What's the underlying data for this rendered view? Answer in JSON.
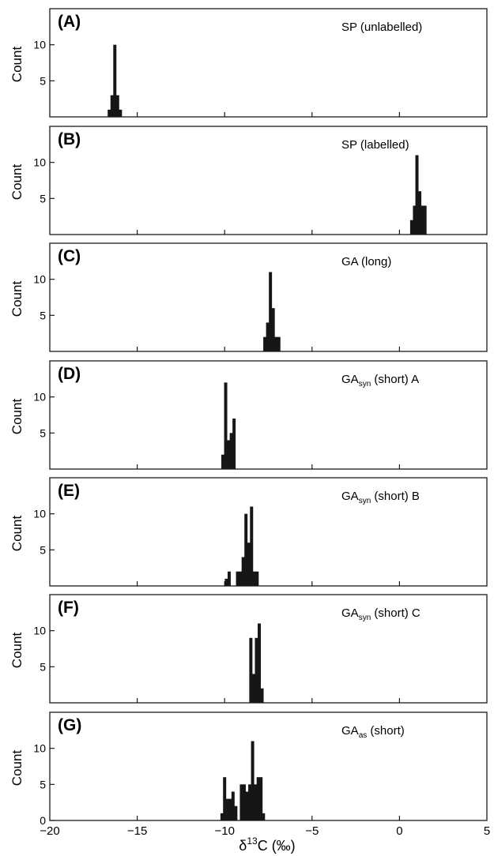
{
  "chart_data": {
    "type": "bar",
    "xlabel_main": "δ",
    "xlabel_sup": "13",
    "xlabel_rest": "C (‰)",
    "xlim": [
      -20,
      5
    ],
    "xticks": [
      "−20",
      "−15",
      "−10",
      "−5",
      "0",
      "5"
    ],
    "xtick_values": [
      -20,
      -15,
      -10,
      -5,
      0,
      5
    ],
    "bin_width": 0.18,
    "panels": [
      {
        "letter": "(A)",
        "title_main": "SP (unlabelled)",
        "title_sub": "",
        "title_rest": "",
        "ylabel": "Count",
        "ylim": [
          0,
          15
        ],
        "yticks": [
          5,
          10
        ],
        "ytick_labels": [
          "5",
          "10"
        ],
        "bins": [
          [
            -16.6,
            1
          ],
          [
            -16.44,
            3
          ],
          [
            -16.28,
            10
          ],
          [
            -16.12,
            3
          ],
          [
            -15.96,
            1
          ]
        ]
      },
      {
        "letter": "(B)",
        "title_main": "SP (labelled)",
        "title_sub": "",
        "title_rest": "",
        "ylabel": "Count",
        "ylim": [
          0,
          15
        ],
        "yticks": [
          5,
          10
        ],
        "ytick_labels": [
          "5",
          "10"
        ],
        "bins": [
          [
            0.7,
            2
          ],
          [
            0.86,
            4
          ],
          [
            1.0,
            11
          ],
          [
            1.16,
            6
          ],
          [
            1.3,
            4
          ],
          [
            1.46,
            4
          ]
        ]
      },
      {
        "letter": "(C)",
        "title_main": "GA (long)",
        "title_sub": "",
        "title_rest": "",
        "ylabel": "Count",
        "ylim": [
          0,
          15
        ],
        "yticks": [
          5,
          10
        ],
        "ytick_labels": [
          "5",
          "10"
        ],
        "bins": [
          [
            -7.7,
            2
          ],
          [
            -7.54,
            4
          ],
          [
            -7.38,
            11
          ],
          [
            -7.22,
            6
          ],
          [
            -7.06,
            2
          ],
          [
            -6.9,
            2
          ]
        ]
      },
      {
        "letter": "(D)",
        "title_main": "GA",
        "title_sub": "syn",
        "title_rest": " (short) A",
        "ylabel": "Count",
        "ylim": [
          0,
          15
        ],
        "yticks": [
          5,
          10
        ],
        "ytick_labels": [
          "5",
          "10"
        ],
        "bins": [
          [
            -10.1,
            2
          ],
          [
            -9.94,
            12
          ],
          [
            -9.78,
            4
          ],
          [
            -9.62,
            5
          ],
          [
            -9.46,
            7
          ]
        ]
      },
      {
        "letter": "(E)",
        "title_main": "GA",
        "title_sub": "syn",
        "title_rest": " (short) B",
        "ylabel": "Count",
        "ylim": [
          0,
          15
        ],
        "yticks": [
          5,
          10
        ],
        "ytick_labels": [
          "5",
          "10"
        ],
        "bins": [
          [
            -9.9,
            1
          ],
          [
            -9.74,
            2
          ],
          [
            -9.58,
            0
          ],
          [
            -9.42,
            0
          ],
          [
            -9.26,
            2
          ],
          [
            -9.1,
            2
          ],
          [
            -8.94,
            4
          ],
          [
            -8.78,
            10
          ],
          [
            -8.62,
            6
          ],
          [
            -8.46,
            11
          ],
          [
            -8.3,
            2
          ],
          [
            -8.14,
            2
          ]
        ]
      },
      {
        "letter": "(F)",
        "title_main": "GA",
        "title_sub": "syn",
        "title_rest": " (short) C",
        "ylabel": "Count",
        "ylim": [
          0,
          15
        ],
        "yticks": [
          5,
          10
        ],
        "ytick_labels": [
          "5",
          "10"
        ],
        "bins": [
          [
            -8.5,
            9
          ],
          [
            -8.34,
            4
          ],
          [
            -8.18,
            9
          ],
          [
            -8.02,
            11
          ],
          [
            -7.86,
            2
          ]
        ]
      },
      {
        "letter": "(G)",
        "title_main": "GA",
        "title_sub": "as",
        "title_rest": " (short)",
        "ylabel": "Count",
        "ylim": [
          0,
          15
        ],
        "yticks": [
          0,
          5,
          10
        ],
        "ytick_labels": [
          "0",
          "5",
          "10"
        ],
        "bins": [
          [
            -10.15,
            1
          ],
          [
            -10.0,
            6
          ],
          [
            -9.84,
            3
          ],
          [
            -9.68,
            3
          ],
          [
            -9.52,
            4
          ],
          [
            -9.36,
            2
          ],
          [
            -9.2,
            0
          ],
          [
            -9.04,
            5
          ],
          [
            -8.88,
            5
          ],
          [
            -8.72,
            4
          ],
          [
            -8.56,
            5
          ],
          [
            -8.4,
            11
          ],
          [
            -8.24,
            5
          ],
          [
            -8.08,
            6
          ],
          [
            -7.92,
            6
          ],
          [
            -7.78,
            1
          ]
        ]
      }
    ]
  }
}
